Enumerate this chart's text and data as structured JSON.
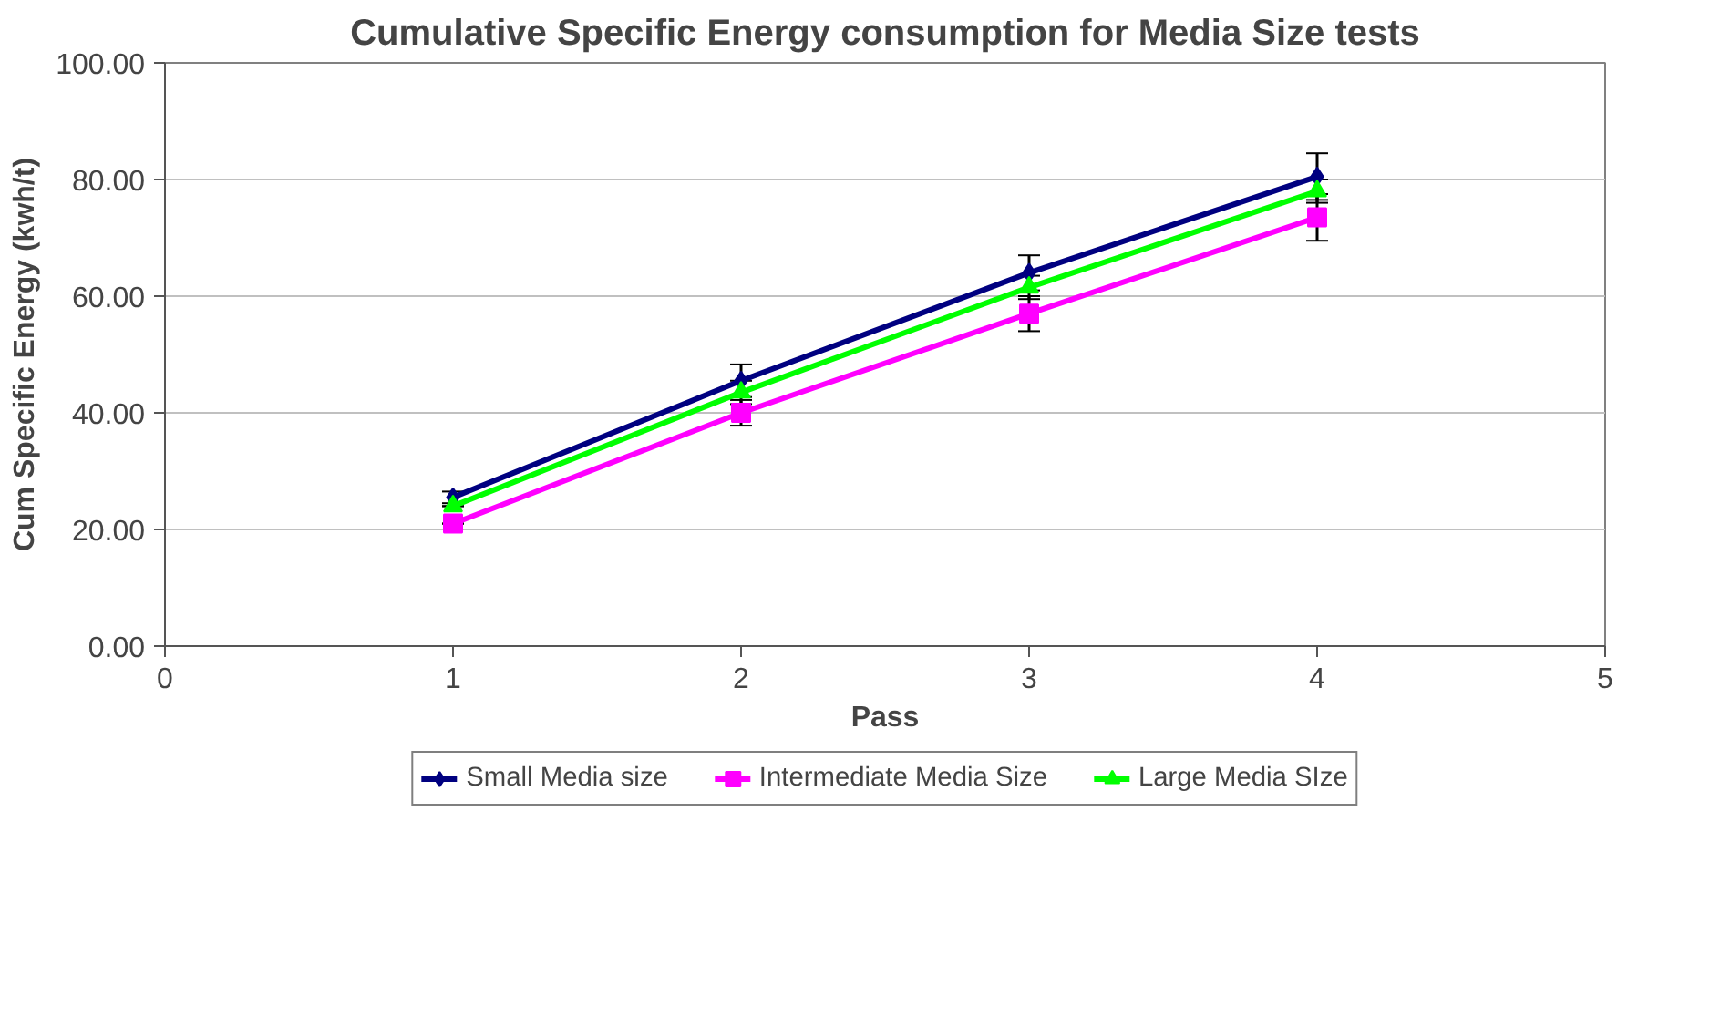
{
  "chart_data": {
    "type": "line",
    "title": "Cumulative Specific Energy consumption for Media Size tests",
    "xlabel": "Pass",
    "ylabel": "Cum Specific Energy (kwh/t)",
    "x": [
      1,
      2,
      3,
      4
    ],
    "series": [
      {
        "name": "Small Media size",
        "color": "#000080",
        "marker": "diamond",
        "values": [
          25.5,
          45.5,
          64,
          80.5
        ],
        "errors": [
          1,
          2.8,
          3,
          4
        ]
      },
      {
        "name": "Intermediate Media Size",
        "color": "#ff00ff",
        "marker": "square",
        "values": [
          21,
          40,
          57,
          73.5
        ],
        "errors": [
          null,
          2.2,
          3,
          4
        ]
      },
      {
        "name": "Large Media SIze",
        "color": "#00ff00",
        "marker": "triangle",
        "values": [
          24,
          43.5,
          61.5,
          78
        ],
        "errors": [
          null,
          2,
          2,
          2
        ]
      }
    ],
    "xlim": [
      0,
      5
    ],
    "xticks": [
      0,
      1,
      2,
      3,
      4,
      5
    ],
    "ylim": [
      0,
      100
    ],
    "yticks": [
      {
        "value": 0,
        "label": "0.00"
      },
      {
        "value": 20,
        "label": "20.00"
      },
      {
        "value": 40,
        "label": "40.00"
      },
      {
        "value": 60,
        "label": "60.00"
      },
      {
        "value": 80,
        "label": "80.00"
      },
      {
        "value": 100,
        "label": "100.00"
      }
    ],
    "grid": "y",
    "legend": "bottom",
    "line_style": "solid"
  }
}
